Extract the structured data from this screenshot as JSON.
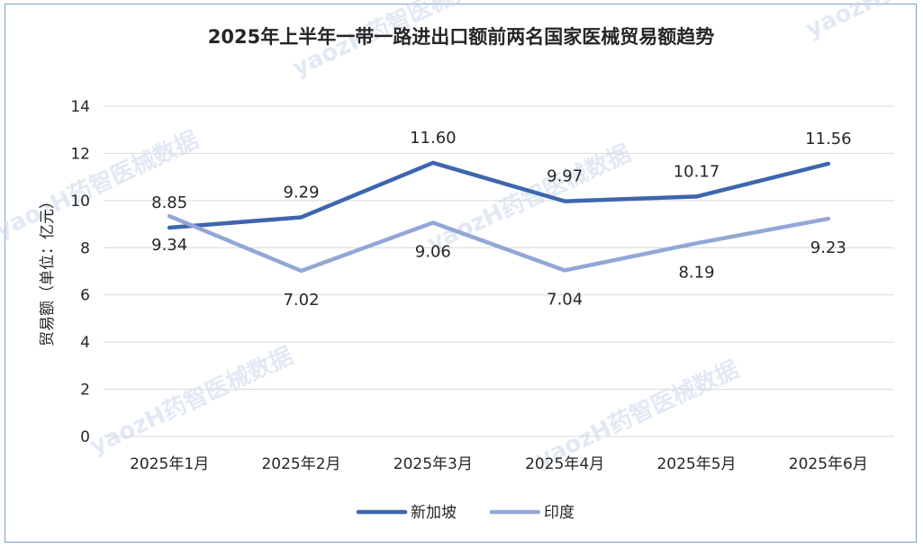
{
  "watermark": "yaozH药智医械数据",
  "chart_data": {
    "type": "line",
    "title": "2025年上半年一带一路进出口额前两名国家医械贸易额趋势",
    "xlabel": "",
    "ylabel": "贸易额（单位：亿元）",
    "ylim": [
      0,
      14
    ],
    "yticks": [
      "0",
      "2",
      "4",
      "6",
      "8",
      "10",
      "12",
      "14"
    ],
    "categories": [
      "2025年1月",
      "2025年2月",
      "2025年3月",
      "2025年4月",
      "2025年5月",
      "2025年6月"
    ],
    "grid": true,
    "legend_position": "bottom",
    "series": [
      {
        "name": "新加坡",
        "color": "#3d66ad",
        "values": [
          8.85,
          9.29,
          11.6,
          9.97,
          10.17,
          11.56
        ],
        "labels": [
          "8.85",
          "9.29",
          "11.60",
          "9.97",
          "10.17",
          "11.56"
        ]
      },
      {
        "name": "印度",
        "color": "#93a7d7",
        "values": [
          9.34,
          7.02,
          9.06,
          7.04,
          8.19,
          9.23
        ],
        "labels": [
          "9.34",
          "7.02",
          "9.06",
          "7.04",
          "8.19",
          "9.23"
        ]
      }
    ]
  }
}
